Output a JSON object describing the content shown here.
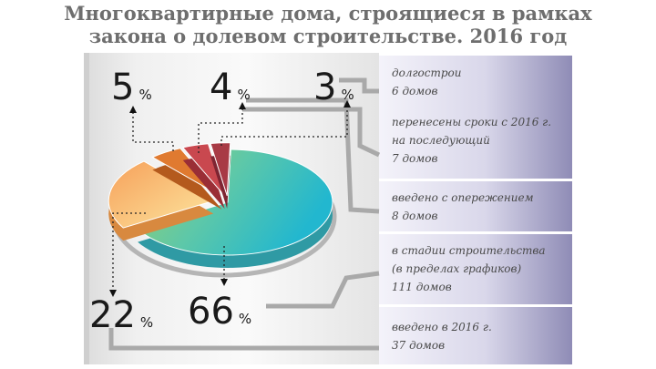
{
  "title": {
    "line1": "Многоквартирные дома, строящиеся в рамках",
    "line2": "закона о долевом строительстве. 2016 год"
  },
  "chart_data": {
    "type": "pie",
    "categories": [
      "введено в 2016 г.",
      "в стадии строительства (в пределах графиков)",
      "введено с опережением",
      "перенесены сроки с 2016 г. на последующий",
      "долгострои"
    ],
    "values": [
      22,
      66,
      5,
      4,
      3
    ],
    "unit": "%",
    "counts": [
      "37 домов",
      "111 домов",
      "8 домов",
      "7 домов",
      "6 домов"
    ],
    "colors": [
      "#f7b56a",
      "#5ec8a8",
      "#e07a30",
      "#c9484f",
      "#a83a45"
    ]
  },
  "labels": {
    "percent_sign": "%",
    "v22": "22",
    "v66": "66",
    "v5": "5",
    "v4": "4",
    "v3": "3"
  },
  "legend": [
    {
      "lines": [
        "долгострои",
        "6 домов"
      ]
    },
    {
      "lines": [
        "перенесены сроки с 2016 г.",
        "на последующий",
        "7 домов"
      ]
    },
    {
      "lines": [
        "введено с опережением",
        "8 домов"
      ]
    },
    {
      "lines": [
        "в стадии строительства",
        "(в пределах графиков)",
        "111 домов"
      ]
    },
    {
      "lines": [
        "введено в 2016 г.",
        "37 домов"
      ]
    }
  ]
}
